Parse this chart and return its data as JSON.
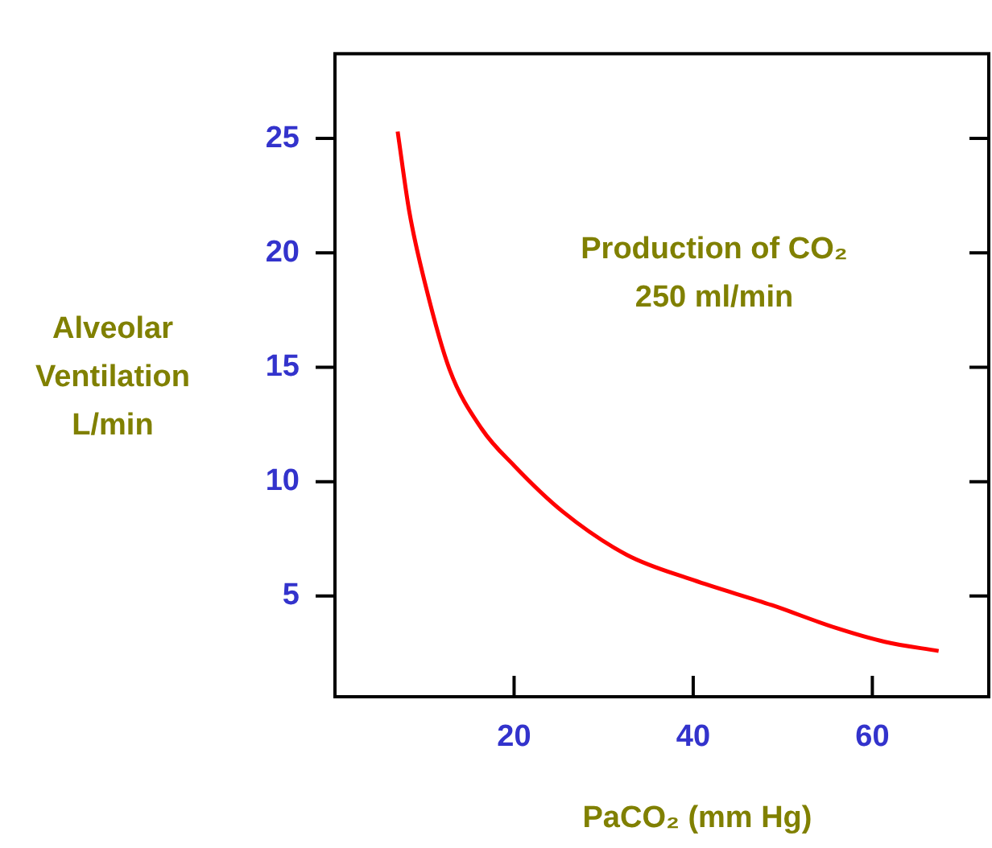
{
  "chart_data": {
    "type": "line",
    "xlabel": "PaCO₂ (mm Hg)",
    "ylabel": "Alveolar\nVentilation\nL/min",
    "annotations": [
      "Production of CO₂",
      "250 ml/min"
    ],
    "x": [
      7.0,
      8.3,
      10.1,
      12.8,
      16.4,
      20,
      25.4,
      32.6,
      40,
      48.8,
      56,
      61.4,
      67.4
    ],
    "series": [
      {
        "color": "#ff0000",
        "values": [
          25.3,
          21.8,
          18.6,
          14.9,
          12.3,
          10.7,
          8.7,
          6.8,
          5.7,
          4.6,
          3.6,
          3.0,
          2.6
        ]
      }
    ],
    "xlim": [
      0,
      73
    ],
    "ylim": [
      0.6,
      28.7
    ],
    "xticks": [
      20,
      40,
      60
    ],
    "yticks": [
      5,
      10,
      15,
      20,
      25
    ],
    "grid": false,
    "legend": false,
    "marker": "none",
    "line_style": "solid"
  }
}
